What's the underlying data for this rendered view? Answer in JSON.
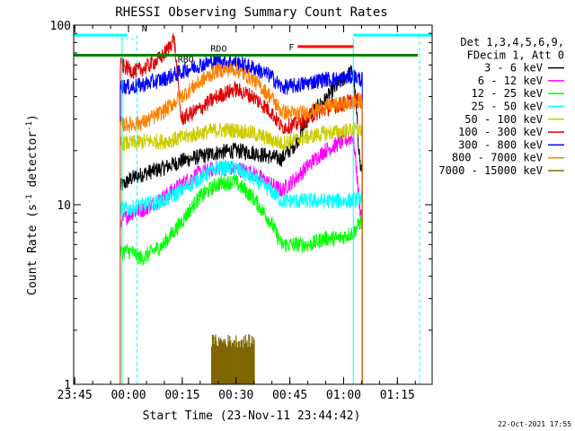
{
  "chart_data": {
    "type": "line",
    "title": "RHESSI Observing Summary Count Rates",
    "xlabel": "Start Time (23-Nov-11 23:44:42)",
    "ylabel_main": "Count Rate (s",
    "ylabel_sup1": "-1",
    "ylabel_mid": " detector",
    "ylabel_sup2": "-1",
    "ylabel_end": ")",
    "y_scale": "log",
    "ylim": [
      1,
      100
    ],
    "xlim_minutes": [
      0,
      100
    ],
    "grid": false,
    "x_tick_labels": [
      {
        "min": 0.3,
        "label": "23:45"
      },
      {
        "min": 15.3,
        "label": "00:00"
      },
      {
        "min": 30.3,
        "label": "00:15"
      },
      {
        "min": 45.3,
        "label": "00:30"
      },
      {
        "min": 60.3,
        "label": "00:45"
      },
      {
        "min": 75.3,
        "label": "01:00"
      },
      {
        "min": 90.3,
        "label": "01:15"
      }
    ],
    "y_tick_labels": [
      {
        "value": 1,
        "label": "1"
      },
      {
        "value": 10,
        "label": "10"
      },
      {
        "value": 100,
        "label": "100"
      }
    ],
    "legend": {
      "placement": "right",
      "header": [
        "Det 1,3,4,5,6,9,",
        "FDecim 1, Att 0"
      ],
      "entries": [
        {
          "label": "3 - 6 keV",
          "color": "#000000"
        },
        {
          "label": "6 - 12 keV",
          "color": "#ff00ff"
        },
        {
          "label": "12 - 25 keV",
          "color": "#00ff00"
        },
        {
          "label": "25 - 50 keV",
          "color": "#00ffff"
        },
        {
          "label": "50 - 100 keV",
          "color": "#cccc00"
        },
        {
          "label": "100 - 300 keV",
          "color": "#e00000"
        },
        {
          "label": "300 - 800 keV",
          "color": "#0000ff"
        },
        {
          "label": "800 - 7000 keV",
          "color": "#ff8000"
        },
        {
          "label": "7000 - 15000 keV",
          "color": "#806600"
        }
      ]
    },
    "data_window_minutes": [
      13,
      80.5
    ],
    "series": [
      {
        "color": "#000000",
        "points": [
          [
            13,
            12.5
          ],
          [
            16,
            14
          ],
          [
            20,
            15
          ],
          [
            25,
            16
          ],
          [
            30,
            17.5
          ],
          [
            35,
            18.5
          ],
          [
            40,
            19.5
          ],
          [
            45,
            20
          ],
          [
            50,
            19.5
          ],
          [
            55,
            18.5
          ],
          [
            58,
            18
          ],
          [
            62,
            22
          ],
          [
            66,
            32
          ],
          [
            70,
            38
          ],
          [
            73,
            45
          ],
          [
            76,
            52
          ],
          [
            78,
            56
          ],
          [
            80,
            16
          ]
        ]
      },
      {
        "color": "#ff00ff",
        "points": [
          [
            13,
            8
          ],
          [
            16,
            9
          ],
          [
            20,
            9.5
          ],
          [
            25,
            11
          ],
          [
            30,
            13
          ],
          [
            35,
            15
          ],
          [
            40,
            16
          ],
          [
            45,
            16
          ],
          [
            50,
            15
          ],
          [
            55,
            13
          ],
          [
            58,
            12
          ],
          [
            62,
            14
          ],
          [
            66,
            17
          ],
          [
            70,
            20
          ],
          [
            74,
            22
          ],
          [
            78,
            24
          ],
          [
            80,
            9
          ]
        ]
      },
      {
        "color": "#00ff00",
        "points": [
          [
            13,
            5.5
          ],
          [
            16,
            5.5
          ],
          [
            19,
            5
          ],
          [
            22,
            5.5
          ],
          [
            25,
            6
          ],
          [
            30,
            8
          ],
          [
            35,
            11
          ],
          [
            40,
            13
          ],
          [
            45,
            13.5
          ],
          [
            50,
            11
          ],
          [
            55,
            8
          ],
          [
            58,
            6
          ],
          [
            62,
            6
          ],
          [
            66,
            6
          ],
          [
            70,
            6.5
          ],
          [
            74,
            6.5
          ],
          [
            78,
            7
          ],
          [
            80,
            8
          ]
        ]
      },
      {
        "color": "#00ffff",
        "points": [
          [
            13,
            9.5
          ],
          [
            16,
            9.5
          ],
          [
            20,
            10
          ],
          [
            25,
            10.5
          ],
          [
            30,
            12
          ],
          [
            35,
            14
          ],
          [
            40,
            16
          ],
          [
            45,
            16
          ],
          [
            50,
            14
          ],
          [
            55,
            12
          ],
          [
            58,
            10.5
          ],
          [
            62,
            10.5
          ],
          [
            66,
            10.5
          ],
          [
            70,
            10.5
          ],
          [
            74,
            10.5
          ],
          [
            78,
            10.5
          ],
          [
            80,
            11
          ]
        ]
      },
      {
        "color": "#cccc00",
        "points": [
          [
            13,
            22
          ],
          [
            16,
            22
          ],
          [
            20,
            22.5
          ],
          [
            25,
            22.5
          ],
          [
            30,
            23.5
          ],
          [
            35,
            25
          ],
          [
            40,
            26
          ],
          [
            45,
            26
          ],
          [
            50,
            25
          ],
          [
            55,
            23
          ],
          [
            58,
            22
          ],
          [
            62,
            23
          ],
          [
            66,
            24
          ],
          [
            70,
            25
          ],
          [
            74,
            25.5
          ],
          [
            78,
            26
          ],
          [
            80,
            26
          ]
        ]
      },
      {
        "color": "#e00000",
        "points": [
          [
            13,
            60
          ],
          [
            17,
            55
          ],
          [
            20,
            58
          ],
          [
            24,
            65
          ],
          [
            26,
            72
          ],
          [
            28,
            85
          ],
          [
            30,
            30
          ],
          [
            35,
            34
          ],
          [
            40,
            40
          ],
          [
            45,
            44
          ],
          [
            50,
            40
          ],
          [
            55,
            33
          ],
          [
            58,
            27
          ],
          [
            62,
            28
          ],
          [
            66,
            31
          ],
          [
            70,
            34
          ],
          [
            74,
            36
          ],
          [
            78,
            38
          ],
          [
            80,
            38
          ]
        ]
      },
      {
        "color": "#0000ff",
        "points": [
          [
            13,
            46
          ],
          [
            16,
            45
          ],
          [
            20,
            47
          ],
          [
            25,
            50
          ],
          [
            30,
            55
          ],
          [
            35,
            60
          ],
          [
            40,
            63
          ],
          [
            45,
            62
          ],
          [
            50,
            58
          ],
          [
            55,
            52
          ],
          [
            58,
            45
          ],
          [
            62,
            46
          ],
          [
            66,
            48
          ],
          [
            70,
            50
          ],
          [
            74,
            50
          ],
          [
            78,
            52
          ],
          [
            80,
            50
          ]
        ]
      },
      {
        "color": "#ff8000",
        "points": [
          [
            13,
            28
          ],
          [
            16,
            28
          ],
          [
            20,
            29
          ],
          [
            25,
            33
          ],
          [
            30,
            40
          ],
          [
            35,
            48
          ],
          [
            40,
            56
          ],
          [
            45,
            57
          ],
          [
            50,
            50
          ],
          [
            55,
            40
          ],
          [
            58,
            33
          ],
          [
            62,
            32
          ],
          [
            66,
            33
          ],
          [
            70,
            35
          ],
          [
            74,
            36
          ],
          [
            78,
            37
          ],
          [
            80,
            38
          ]
        ]
      },
      {
        "color": "#806600",
        "points": []
      }
    ],
    "annotations": [
      {
        "text": "N",
        "color": "#00ffff"
      },
      {
        "text": "RDO",
        "color": "#008000"
      },
      {
        "text": "RBO",
        "color": "#008000"
      },
      {
        "text": "F",
        "color": "#ff0000"
      }
    ],
    "footer_date": "22-Oct-2021 17:55"
  }
}
